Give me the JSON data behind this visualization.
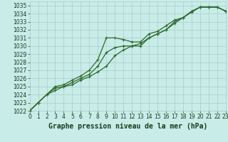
{
  "title": "Graphe pression niveau de la mer (hPa)",
  "x_ticks": [
    0,
    1,
    2,
    3,
    4,
    5,
    6,
    7,
    8,
    9,
    10,
    11,
    12,
    13,
    14,
    15,
    16,
    17,
    18,
    19,
    20,
    21,
    22,
    23
  ],
  "xlim": [
    0,
    23
  ],
  "ylim": [
    1022,
    1035.5
  ],
  "y_ticks": [
    1022,
    1023,
    1024,
    1025,
    1026,
    1027,
    1028,
    1029,
    1030,
    1031,
    1032,
    1033,
    1034,
    1035
  ],
  "series1_x": [
    0,
    1,
    2,
    3,
    4,
    5,
    6,
    7,
    8,
    9,
    10,
    11,
    12,
    13,
    14,
    15,
    16,
    17,
    18,
    19,
    20,
    21,
    22,
    23
  ],
  "series1_y": [
    1022.0,
    1023.0,
    1024.0,
    1025.0,
    1025.2,
    1025.8,
    1026.3,
    1027.0,
    1028.3,
    1031.0,
    1031.0,
    1030.8,
    1030.5,
    1030.5,
    1031.5,
    1031.8,
    1032.5,
    1033.2,
    1033.5,
    1034.3,
    1034.8,
    1034.8,
    1034.8,
    1034.3
  ],
  "series2_x": [
    0,
    1,
    2,
    3,
    4,
    5,
    6,
    7,
    8,
    9,
    10,
    11,
    12,
    13,
    14,
    15,
    16,
    17,
    18,
    19,
    20,
    21,
    22,
    23
  ],
  "series2_y": [
    1022.0,
    1023.0,
    1024.0,
    1024.8,
    1025.0,
    1025.5,
    1026.0,
    1026.5,
    1027.5,
    1029.2,
    1029.8,
    1030.0,
    1030.0,
    1030.0,
    1031.0,
    1031.5,
    1032.0,
    1033.0,
    1033.5,
    1034.2,
    1034.8,
    1034.8,
    1034.8,
    1034.3
  ],
  "series3_x": [
    0,
    1,
    2,
    3,
    4,
    5,
    6,
    7,
    8,
    9,
    10,
    11,
    12,
    13,
    14,
    15,
    16,
    17,
    18,
    19,
    20,
    21,
    22,
    23
  ],
  "series3_y": [
    1022.0,
    1023.0,
    1024.0,
    1024.5,
    1025.0,
    1025.2,
    1025.8,
    1026.2,
    1026.8,
    1027.5,
    1028.8,
    1029.5,
    1030.0,
    1030.3,
    1031.0,
    1031.5,
    1032.0,
    1032.8,
    1033.5,
    1034.2,
    1034.8,
    1034.8,
    1034.8,
    1034.3
  ],
  "line_color": "#2d6a2d",
  "bg_color": "#c8ece8",
  "grid_color": "#aacccc",
  "title_color": "#1a3a1a",
  "tick_label_color": "#1a3a1a",
  "marker": "+",
  "marker_size": 3,
  "line_width": 0.9,
  "title_fontsize": 7,
  "tick_fontsize": 5.5
}
